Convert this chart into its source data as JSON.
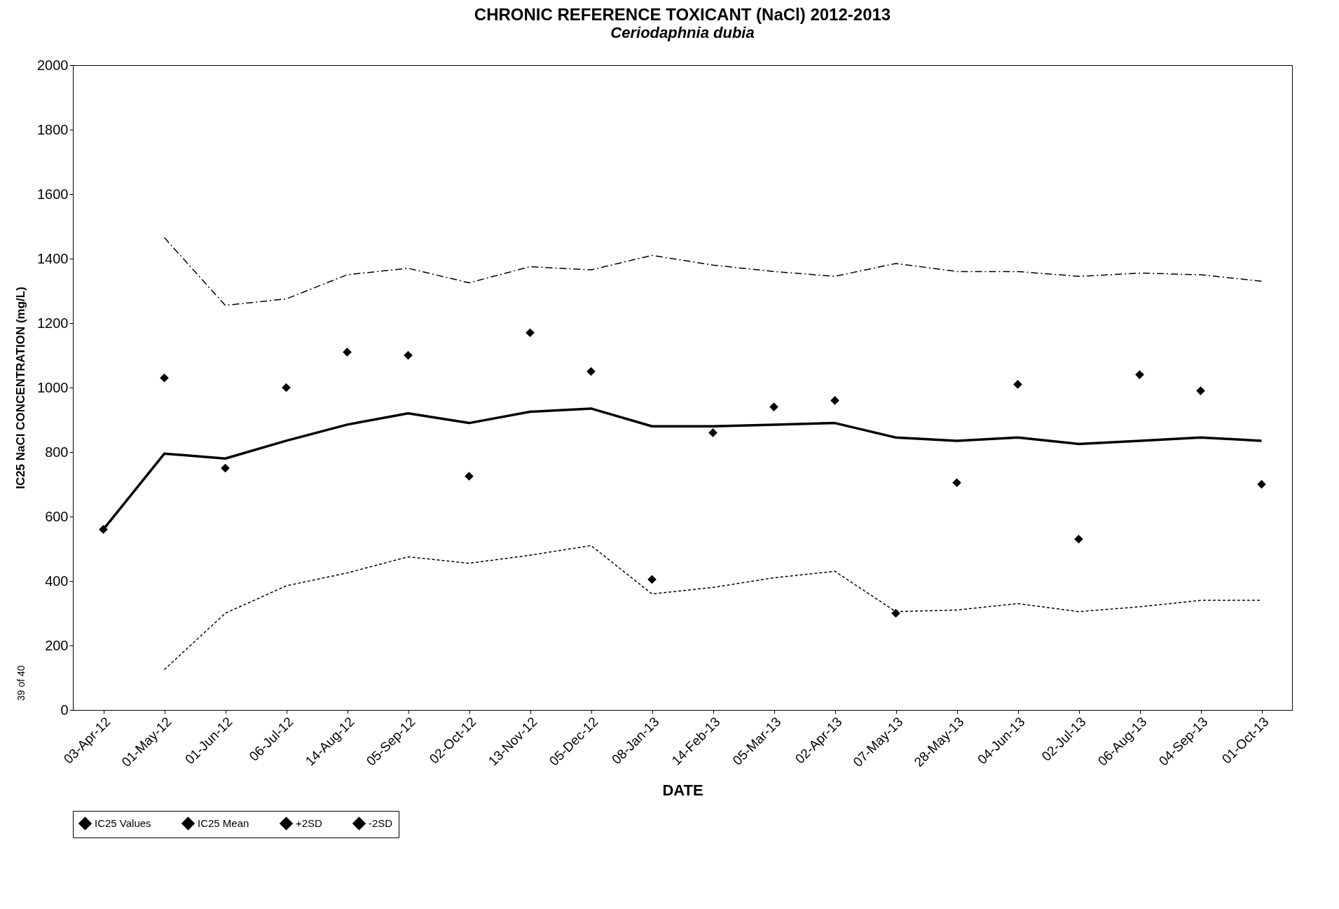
{
  "chart_data": {
    "type": "line",
    "title": "CHRONIC REFERENCE TOXICANT (NaCl) 2012-2013",
    "subtitle": "Ceriodaphnia dubia",
    "xlabel": "DATE",
    "ylabel": "IC25 NaCl CONCENTRATION (mg/L)",
    "categories": [
      "03-Apr-12",
      "01-May-12",
      "01-Jun-12",
      "06-Jul-12",
      "14-Aug-12",
      "05-Sep-12",
      "02-Oct-12",
      "13-Nov-12",
      "05-Dec-12",
      "08-Jan-13",
      "14-Feb-13",
      "05-Mar-13",
      "02-Apr-13",
      "07-May-13",
      "28-May-13",
      "04-Jun-13",
      "02-Jul-13",
      "06-Aug-13",
      "04-Sep-13",
      "01-Oct-13"
    ],
    "series": [
      {
        "name": "IC25 Values",
        "type": "scatter",
        "marker": "diamond",
        "color": "#000000",
        "values": [
          560,
          1030,
          750,
          1000,
          1110,
          1100,
          725,
          1170,
          1050,
          405,
          860,
          940,
          960,
          300,
          705,
          1010,
          530,
          1040,
          990,
          700
        ]
      },
      {
        "name": "IC25 Mean",
        "line_style": "solid",
        "color": "#000000",
        "values": [
          560,
          795,
          780,
          835,
          885,
          920,
          890,
          925,
          935,
          880,
          880,
          885,
          890,
          845,
          835,
          845,
          825,
          835,
          845,
          835
        ]
      },
      {
        "name": "+2SD",
        "line_style": "dashed",
        "color": "#000000",
        "values": [
          null,
          1465,
          1255,
          1275,
          1350,
          1370,
          1325,
          1375,
          1365,
          1410,
          1380,
          1360,
          1345,
          1385,
          1360,
          1360,
          1345,
          1355,
          1350,
          1330
        ]
      },
      {
        "name": "-2SD",
        "line_style": "dotted",
        "color": "#000000",
        "values": [
          null,
          125,
          300,
          385,
          425,
          475,
          455,
          480,
          510,
          360,
          380,
          410,
          430,
          305,
          310,
          330,
          305,
          320,
          340,
          340
        ]
      }
    ],
    "ylim": [
      0,
      2000
    ],
    "yticks": [
      0,
      200,
      400,
      600,
      800,
      1000,
      1200,
      1400,
      1600,
      1800,
      2000
    ],
    "legend": "bottom",
    "annotations": [
      "39 of 40"
    ]
  }
}
